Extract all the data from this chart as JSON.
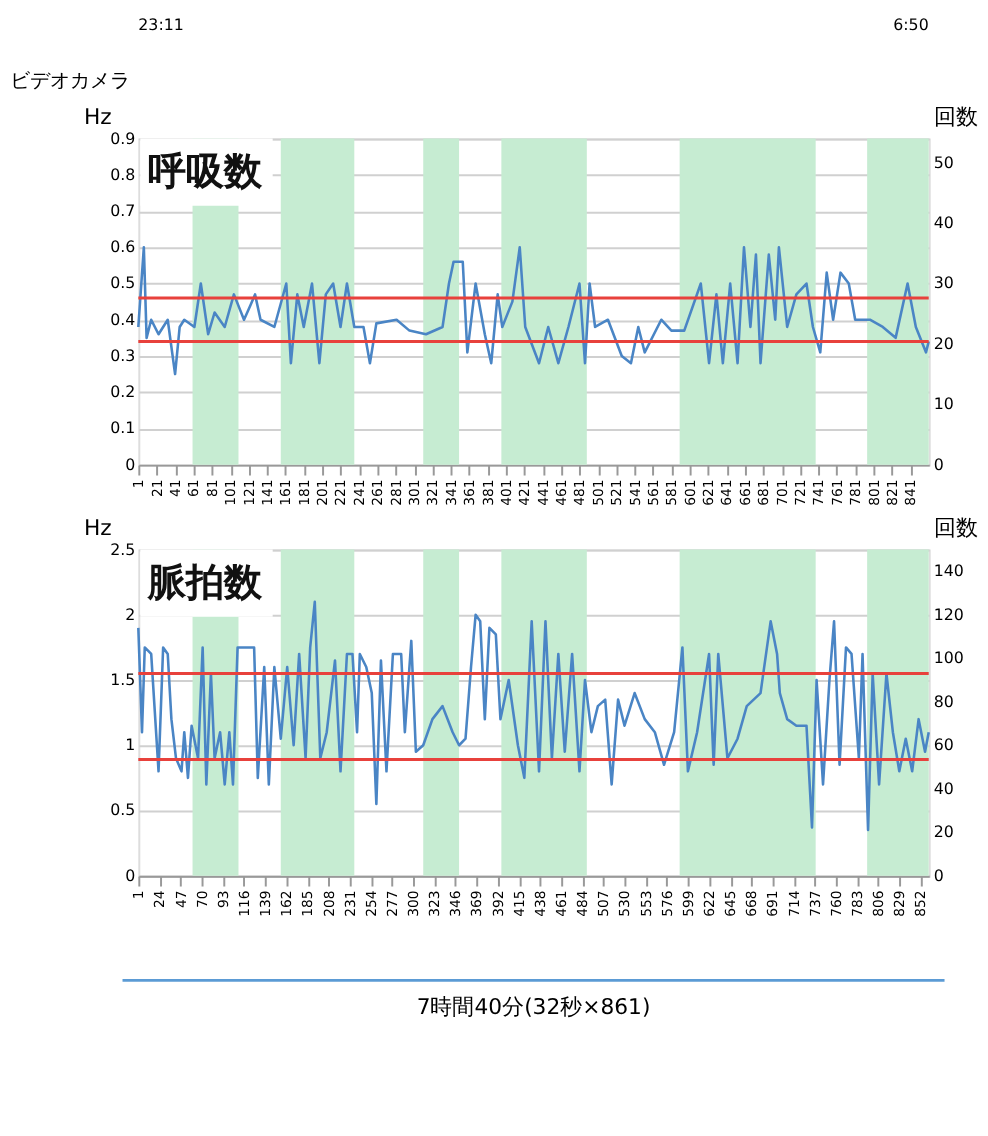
{
  "chart_data": [
    {
      "type": "other",
      "annotations": [
        "23:11",
        "6:50",
        "ビデオカメラ"
      ]
    },
    {
      "type": "line",
      "title": "呼吸数",
      "ylabel": "Hz",
      "y2label": "回数",
      "grid": "y",
      "xlim": [
        1,
        861
      ],
      "xticks": [
        1,
        21,
        41,
        61,
        81,
        101,
        121,
        141,
        161,
        181,
        201,
        221,
        241,
        261,
        281,
        301,
        321,
        341,
        361,
        381,
        401,
        421,
        441,
        461,
        481,
        501,
        521,
        541,
        561,
        581,
        601,
        621,
        641,
        661,
        681,
        701,
        721,
        741,
        761,
        781,
        801,
        821,
        841
      ],
      "ylim": [
        0,
        0.9
      ],
      "yticks": [
        0,
        0.1,
        0.2,
        0.3,
        0.4,
        0.5,
        0.6,
        0.7,
        0.8,
        0.9
      ],
      "y2lim": [
        0,
        54
      ],
      "y2ticks": [
        0,
        10,
        20,
        30,
        40,
        50
      ],
      "bands": [
        {
          "axis": "x",
          "from": 60,
          "to": 110,
          "color": "#c6ecd2"
        },
        {
          "axis": "x",
          "from": 156,
          "to": 236,
          "color": "#c6ecd2"
        },
        {
          "axis": "x",
          "from": 311,
          "to": 350,
          "color": "#c6ecd2"
        },
        {
          "axis": "x",
          "from": 396,
          "to": 489,
          "color": "#c6ecd2"
        },
        {
          "axis": "x",
          "from": 590,
          "to": 738,
          "color": "#c6ecd2"
        },
        {
          "axis": "x",
          "from": 794,
          "to": 861,
          "color": "#c6ecd2"
        }
      ],
      "ref_lines": [
        {
          "axis": "y",
          "value": 0.34,
          "color": "#e8413c"
        },
        {
          "axis": "y",
          "value": 0.46,
          "color": "#e8413c"
        }
      ],
      "series": [
        {
          "color": "#4a85c5",
          "x": [
            1,
            7,
            10,
            15,
            23,
            33,
            41,
            46,
            51,
            62,
            69,
            77,
            84,
            95,
            105,
            116,
            123,
            128,
            134,
            149,
            162,
            167,
            174,
            181,
            190,
            198,
            205,
            213,
            221,
            228,
            236,
            246,
            253,
            260,
            282,
            296,
            314,
            332,
            339,
            344,
            354,
            359,
            368,
            378,
            385,
            392,
            397,
            408,
            416,
            422,
            437,
            447,
            458,
            469,
            481,
            487,
            492,
            498,
            512,
            527,
            537,
            545,
            552,
            570,
            581,
            595,
            613,
            622,
            630,
            637,
            645,
            653,
            660,
            667,
            673,
            678,
            687,
            694,
            698,
            707,
            717,
            728,
            735,
            743,
            750,
            757,
            765,
            774,
            781,
            797,
            811,
            825,
            838,
            847,
            858,
            861
          ],
          "values": [
            0.38,
            0.6,
            0.35,
            0.4,
            0.36,
            0.4,
            0.25,
            0.38,
            0.4,
            0.38,
            0.5,
            0.36,
            0.42,
            0.38,
            0.47,
            0.4,
            0.44,
            0.47,
            0.4,
            0.38,
            0.5,
            0.28,
            0.47,
            0.38,
            0.5,
            0.28,
            0.47,
            0.5,
            0.38,
            0.5,
            0.38,
            0.38,
            0.28,
            0.39,
            0.4,
            0.37,
            0.36,
            0.38,
            0.5,
            0.56,
            0.56,
            0.31,
            0.5,
            0.36,
            0.28,
            0.47,
            0.38,
            0.45,
            0.6,
            0.38,
            0.28,
            0.38,
            0.28,
            0.38,
            0.5,
            0.28,
            0.5,
            0.38,
            0.4,
            0.3,
            0.28,
            0.38,
            0.31,
            0.4,
            0.37,
            0.37,
            0.5,
            0.28,
            0.47,
            0.28,
            0.5,
            0.28,
            0.6,
            0.38,
            0.58,
            0.28,
            0.58,
            0.4,
            0.6,
            0.38,
            0.47,
            0.5,
            0.38,
            0.31,
            0.53,
            0.4,
            0.53,
            0.5,
            0.4,
            0.4,
            0.38,
            0.35,
            0.5,
            0.38,
            0.31,
            0.34
          ]
        }
      ]
    },
    {
      "type": "line",
      "title": "脈拍数",
      "ylabel": "Hz",
      "y2label": "回数",
      "grid": "y",
      "xlim": [
        1,
        861
      ],
      "xticks": [
        1,
        24,
        47,
        70,
        93,
        116,
        139,
        162,
        185,
        208,
        231,
        254,
        277,
        300,
        323,
        346,
        369,
        392,
        415,
        438,
        461,
        484,
        507,
        530,
        553,
        576,
        599,
        622,
        645,
        668,
        691,
        714,
        737,
        760,
        783,
        806,
        829,
        852
      ],
      "ylim": [
        0,
        2.5
      ],
      "yticks": [
        0,
        0.5,
        1,
        1.5,
        2,
        2.5
      ],
      "annotations": [
        "7時間40分(32秒×861)"
      ],
      "y2lim": [
        0,
        150
      ],
      "y2ticks": [
        0,
        20,
        40,
        60,
        80,
        100,
        120,
        140
      ],
      "bands": [
        {
          "axis": "x",
          "from": 60,
          "to": 110,
          "color": "#c6ecd2"
        },
        {
          "axis": "x",
          "from": 156,
          "to": 236,
          "color": "#c6ecd2"
        },
        {
          "axis": "x",
          "from": 311,
          "to": 350,
          "color": "#c6ecd2"
        },
        {
          "axis": "x",
          "from": 396,
          "to": 489,
          "color": "#c6ecd2"
        },
        {
          "axis": "x",
          "from": 590,
          "to": 738,
          "color": "#c6ecd2"
        },
        {
          "axis": "x",
          "from": 794,
          "to": 861,
          "color": "#c6ecd2"
        }
      ],
      "ref_lines": [
        {
          "axis": "y",
          "value": 0.89,
          "color": "#e8413c"
        },
        {
          "axis": "y",
          "value": 1.55,
          "color": "#e8413c"
        }
      ],
      "series": [
        {
          "color": "#4a85c5",
          "x": [
            1,
            5,
            8,
            15,
            23,
            28,
            33,
            37,
            42,
            48,
            51,
            55,
            59,
            66,
            71,
            75,
            80,
            84,
            90,
            95,
            100,
            104,
            109,
            127,
            131,
            138,
            143,
            149,
            156,
            163,
            170,
            176,
            183,
            188,
            193,
            199,
            206,
            215,
            221,
            228,
            234,
            239,
            242,
            249,
            255,
            260,
            265,
            271,
            278,
            287,
            291,
            298,
            303,
            311,
            321,
            332,
            343,
            350,
            357,
            363,
            368,
            373,
            378,
            383,
            390,
            395,
            404,
            414,
            421,
            429,
            437,
            444,
            451,
            458,
            465,
            473,
            481,
            487,
            494,
            501,
            509,
            516,
            523,
            530,
            541,
            552,
            563,
            573,
            584,
            593,
            599,
            609,
            622,
            627,
            632,
            642,
            653,
            663,
            678,
            689,
            696,
            699,
            707,
            717,
            728,
            734,
            739,
            746,
            753,
            758,
            764,
            771,
            777,
            785,
            789,
            795,
            800,
            807,
            815,
            822,
            829,
            836,
            843,
            850,
            857,
            861
          ],
          "values": [
            1.9,
            1.1,
            1.75,
            1.7,
            0.8,
            1.75,
            1.7,
            1.2,
            0.9,
            0.8,
            1.1,
            0.75,
            1.15,
            0.9,
            1.75,
            0.7,
            1.55,
            0.9,
            1.1,
            0.7,
            1.1,
            0.7,
            1.75,
            1.75,
            0.75,
            1.6,
            0.7,
            1.6,
            1.05,
            1.6,
            1.0,
            1.7,
            0.9,
            1.75,
            2.1,
            0.9,
            1.1,
            1.65,
            0.8,
            1.7,
            1.7,
            1.1,
            1.7,
            1.6,
            1.4,
            0.55,
            1.65,
            0.8,
            1.7,
            1.7,
            1.1,
            1.8,
            0.95,
            1.0,
            1.2,
            1.3,
            1.1,
            1.0,
            1.05,
            1.6,
            2.0,
            1.95,
            1.2,
            1.9,
            1.85,
            1.2,
            1.5,
            1.0,
            0.75,
            1.95,
            0.8,
            1.95,
            0.9,
            1.7,
            0.95,
            1.7,
            0.8,
            1.5,
            1.1,
            1.3,
            1.35,
            0.7,
            1.35,
            1.15,
            1.4,
            1.2,
            1.1,
            0.85,
            1.1,
            1.75,
            0.8,
            1.1,
            1.7,
            0.85,
            1.7,
            0.9,
            1.05,
            1.3,
            1.4,
            1.95,
            1.7,
            1.4,
            1.2,
            1.15,
            1.15,
            0.37,
            1.5,
            0.7,
            1.5,
            1.95,
            0.85,
            1.75,
            1.7,
            0.9,
            1.7,
            0.35,
            1.55,
            0.7,
            1.55,
            1.1,
            0.8,
            1.05,
            0.8,
            1.2,
            0.95,
            1.1
          ]
        }
      ]
    }
  ]
}
